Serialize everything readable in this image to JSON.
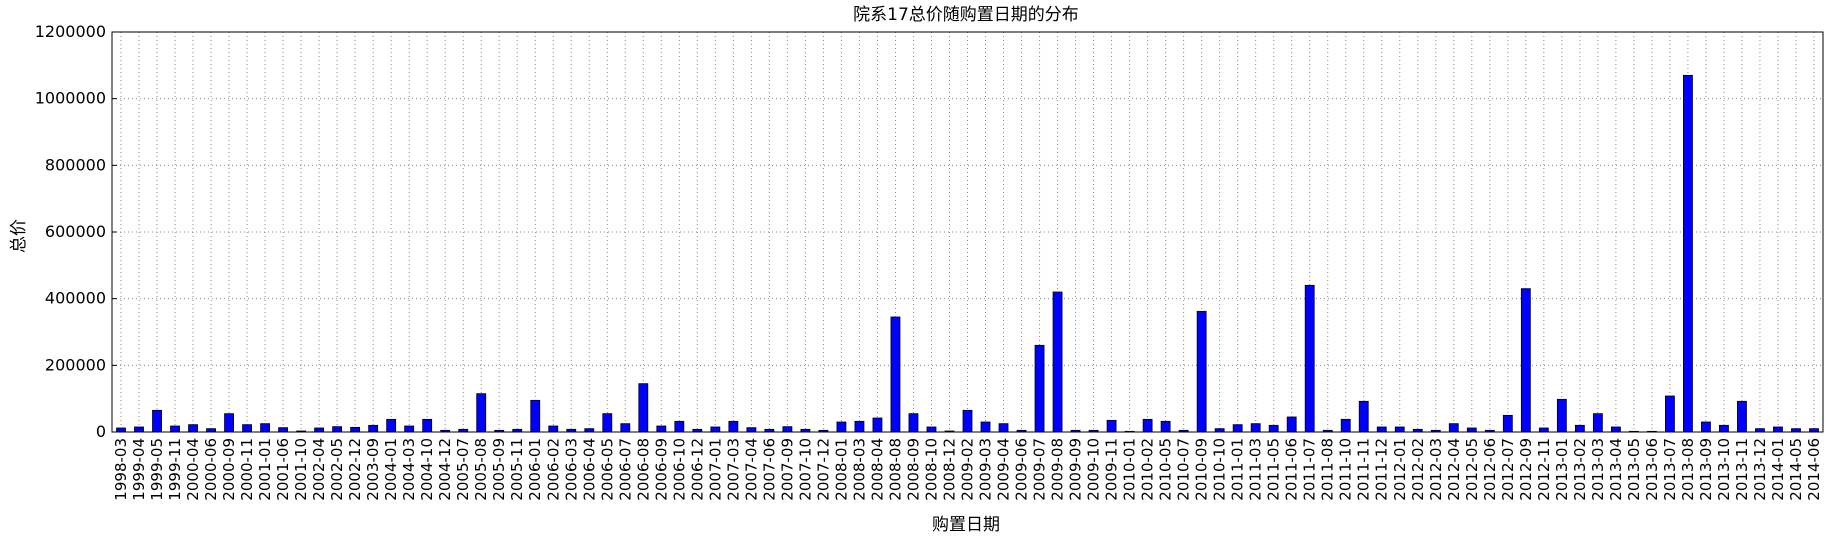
{
  "chart_data": {
    "type": "bar",
    "title": "院系17总价随购置日期的分布",
    "xlabel": "购置日期",
    "ylabel": "总价",
    "categories": [
      "1998-03",
      "1999-04",
      "1999-05",
      "1999-11",
      "2000-04",
      "2000-06",
      "2000-09",
      "2000-11",
      "2001-01",
      "2001-06",
      "2001-10",
      "2002-04",
      "2002-05",
      "2002-12",
      "2003-09",
      "2004-01",
      "2004-03",
      "2004-10",
      "2004-12",
      "2005-07",
      "2005-08",
      "2005-09",
      "2005-11",
      "2006-01",
      "2006-02",
      "2006-03",
      "2006-04",
      "2006-05",
      "2006-07",
      "2006-08",
      "2006-09",
      "2006-10",
      "2006-12",
      "2007-01",
      "2007-03",
      "2007-04",
      "2007-06",
      "2007-09",
      "2007-10",
      "2007-12",
      "2008-01",
      "2008-03",
      "2008-04",
      "2008-08",
      "2008-09",
      "2008-10",
      "2008-12",
      "2009-02",
      "2009-03",
      "2009-04",
      "2009-06",
      "2009-07",
      "2009-08",
      "2009-09",
      "2009-10",
      "2009-11",
      "2010-01",
      "2010-02",
      "2010-05",
      "2010-07",
      "2010-09",
      "2010-10",
      "2011-01",
      "2011-03",
      "2011-05",
      "2011-06",
      "2011-07",
      "2011-08",
      "2011-10",
      "2011-11",
      "2011-12",
      "2012-01",
      "2012-02",
      "2012-03",
      "2012-04",
      "2012-05",
      "2012-06",
      "2012-07",
      "2012-09",
      "2012-11",
      "2013-01",
      "2013-02",
      "2013-03",
      "2013-04",
      "2013-05",
      "2013-06",
      "2013-07",
      "2013-08",
      "2013-09",
      "2013-10",
      "2013-11",
      "2013-12",
      "2014-01",
      "2014-05",
      "2014-06"
    ],
    "values": [
      12000,
      15000,
      65000,
      18000,
      22000,
      10000,
      55000,
      22000,
      25000,
      13000,
      3000,
      12000,
      16000,
      14000,
      20000,
      38000,
      18000,
      38000,
      5000,
      8000,
      115000,
      5000,
      8000,
      95000,
      18000,
      8000,
      10000,
      55000,
      25000,
      145000,
      18000,
      32000,
      8000,
      15000,
      32000,
      13000,
      8000,
      16000,
      8000,
      5000,
      30000,
      32000,
      42000,
      345000,
      55000,
      15000,
      3000,
      65000,
      30000,
      25000,
      5000,
      260000,
      420000,
      5000,
      5000,
      35000,
      2000,
      38000,
      32000,
      5000,
      362000,
      10000,
      22000,
      25000,
      20000,
      45000,
      440000,
      5000,
      38000,
      92000,
      15000,
      15000,
      8000,
      5000,
      25000,
      12000,
      5000,
      50000,
      430000,
      12000,
      98000,
      20000,
      55000,
      15000,
      2000,
      2000,
      108000,
      1070000,
      30000,
      20000,
      92000,
      10000,
      15000,
      10000,
      10000
    ],
    "color": "#0000ff",
    "ylim": [
      0,
      1200000
    ],
    "yticks": [
      0,
      200000,
      400000,
      600000,
      800000,
      1000000,
      1200000
    ],
    "grid": true
  }
}
